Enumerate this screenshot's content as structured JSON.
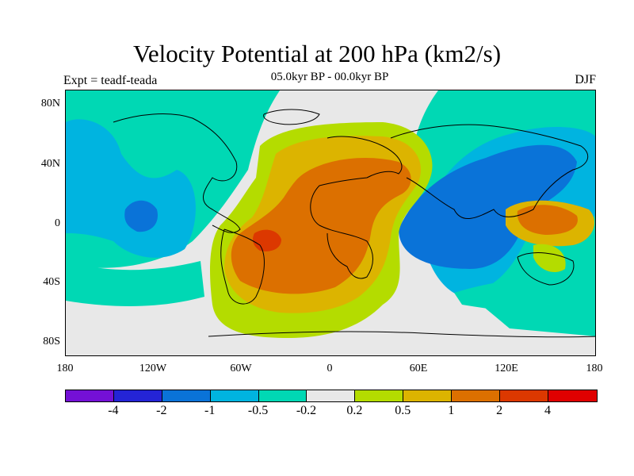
{
  "title": "Velocity Potential at 200 hPa (km2/s)",
  "subtitle": "05.0kyr BP - 00.0kyr BP",
  "left_label": "Expt = teadf-teada",
  "right_label": "DJF",
  "lat_ticks": [
    "80N",
    "40N",
    "0",
    "40S",
    "80S"
  ],
  "lon_ticks": [
    "180",
    "120W",
    "60W",
    "0",
    "60E",
    "120E",
    "180"
  ],
  "colorbar": {
    "colors": [
      "#7410d6",
      "#2424d6",
      "#0a73d8",
      "#00b4e0",
      "#00d8b4",
      "#e8e8e8",
      "#b4dc00",
      "#dcb400",
      "#dc7000",
      "#dc3800",
      "#e00000"
    ],
    "labels": [
      "-4",
      "-2",
      "-1",
      "-0.5",
      "-0.2",
      "0.2",
      "0.5",
      "1",
      "2",
      "4"
    ]
  },
  "chart_data": {
    "type": "heatmap",
    "title": "Velocity Potential at 200 hPa (km2/s)",
    "subtitle": "05.0kyr BP - 00.0kyr BP",
    "experiment": "Expt = teadf-teada",
    "season": "DJF",
    "x_range": [
      -180,
      180
    ],
    "y_range": [
      -90,
      90
    ],
    "x_ticks": [
      "180",
      "120W",
      "60W",
      "0",
      "60E",
      "120E",
      "180"
    ],
    "y_ticks": [
      "80N",
      "40N",
      "0",
      "40S",
      "80S"
    ],
    "contour_levels": [
      -4,
      -2,
      -1,
      -0.5,
      -0.2,
      0.2,
      0.5,
      1,
      2,
      4
    ],
    "features": [
      {
        "name": "Atlantic-Africa positive maximum",
        "lon": -40,
        "lat": -12,
        "level": "2 to 4"
      },
      {
        "name": "Atlantic-Africa broad positive region",
        "lon": 0,
        "lat": 0,
        "level": "1 to 2"
      },
      {
        "name": "Indian Ocean-Asia negative region",
        "lon": 100,
        "lat": 20,
        "level": "-1 to -0.5"
      },
      {
        "name": "West Pacific positive cell",
        "lon": 145,
        "lat": 5,
        "level": "1 to 2"
      },
      {
        "name": "East Pacific negative cell",
        "lon": -130,
        "lat": 5,
        "level": "-1 to -0.5"
      }
    ]
  }
}
